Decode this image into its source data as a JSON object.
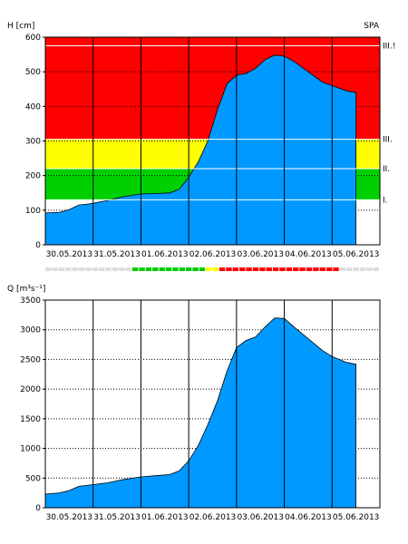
{
  "top": {
    "ylabel": "H [cm]",
    "station": "SPA",
    "ylim": [
      0,
      600
    ],
    "yticks": [
      0,
      100,
      200,
      300,
      400,
      500,
      600
    ],
    "flood_levels": [
      {
        "label": "I.",
        "value": 130,
        "color": "#00d000"
      },
      {
        "label": "II.",
        "value": 220,
        "color": "#ffff00"
      },
      {
        "label": "III.",
        "value": 305,
        "color": "#ff0000"
      },
      {
        "label": "III.!",
        "value": 575,
        "color": "#ff0000"
      }
    ],
    "colors": {
      "area": "#0099ff",
      "below_I": "#ffffff"
    }
  },
  "bottom": {
    "ylabel": "Q [m³s⁻¹]",
    "ylim": [
      0,
      3500
    ],
    "yticks": [
      0,
      500,
      1000,
      1500,
      2000,
      2500,
      3000,
      3500
    ],
    "colors": {
      "area": "#0099ff"
    }
  },
  "x_labels": [
    "30.05.2013",
    "31.05.2013",
    "01.06.2013",
    "02.06.2013",
    "03.06.2013",
    "04.06.2013",
    "05.06.2013"
  ],
  "status_bar": [
    "#dddddd",
    "#dddddd",
    "#dddddd",
    "#dddddd",
    "#dddddd",
    "#dddddd",
    "#dddddd",
    "#dddddd",
    "#dddddd",
    "#dddddd",
    "#dddddd",
    "#dddddd",
    "#dddddd",
    "#00cc00",
    "#00cc00",
    "#00cc00",
    "#00cc00",
    "#00cc00",
    "#00cc00",
    "#00cc00",
    "#00cc00",
    "#00cc00",
    "#00cc00",
    "#00cc00",
    "#ffff00",
    "#ffff00",
    "#ff0000",
    "#ff0000",
    "#ff0000",
    "#ff0000",
    "#ff0000",
    "#ff0000",
    "#ff0000",
    "#ff0000",
    "#ff0000",
    "#ff0000",
    "#ff0000",
    "#ff0000",
    "#ff0000",
    "#ff0000",
    "#ff0000",
    "#ff0000",
    "#ff0000",
    "#ff0000",
    "#dddddd",
    "#dddddd",
    "#dddddd",
    "#dddddd",
    "#dddddd",
    "#dddddd"
  ],
  "chart_data": [
    {
      "type": "area",
      "x_unit": "days from 30.05.2013 00:00",
      "x": [
        0,
        0.3,
        0.5,
        0.7,
        0.9,
        1.0,
        1.3,
        1.6,
        2.0,
        2.3,
        2.6,
        2.8,
        3.0,
        3.2,
        3.4,
        3.6,
        3.8,
        4.0,
        4.2,
        4.4,
        4.6,
        4.8,
        5.0,
        5.2,
        5.5,
        5.8,
        6.0,
        6.3,
        6.5
      ],
      "values": [
        92,
        94,
        102,
        115,
        118,
        120,
        128,
        138,
        147,
        148,
        150,
        160,
        195,
        240,
        300,
        390,
        465,
        490,
        495,
        510,
        535,
        548,
        545,
        530,
        500,
        470,
        460,
        445,
        440
      ],
      "ylabel": "H [cm]",
      "ylim": [
        0,
        600
      ]
    },
    {
      "type": "area",
      "x_unit": "days from 30.05.2013 00:00",
      "x": [
        0,
        0.3,
        0.5,
        0.7,
        0.9,
        1.0,
        1.3,
        1.6,
        2.0,
        2.3,
        2.6,
        2.8,
        3.0,
        3.2,
        3.4,
        3.6,
        3.8,
        4.0,
        4.2,
        4.4,
        4.6,
        4.8,
        5.0,
        5.2,
        5.5,
        5.8,
        6.0,
        6.3,
        6.5
      ],
      "values": [
        230,
        250,
        290,
        360,
        380,
        390,
        420,
        470,
        520,
        540,
        560,
        620,
        790,
        1050,
        1400,
        1800,
        2300,
        2700,
        2820,
        2880,
        3050,
        3200,
        3190,
        3050,
        2850,
        2650,
        2550,
        2450,
        2420
      ],
      "ylabel": "Q [m³s⁻¹]",
      "ylim": [
        0,
        3500
      ]
    }
  ]
}
